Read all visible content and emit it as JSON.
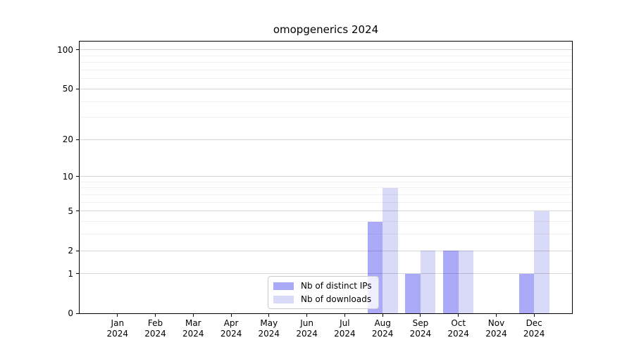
{
  "title": "omopgenerics 2024",
  "chart_data": {
    "type": "bar",
    "title": "omopgenerics 2024",
    "categories": [
      "Jan 2024",
      "Feb 2024",
      "Mar 2024",
      "Apr 2024",
      "May 2024",
      "Jun 2024",
      "Jul 2024",
      "Aug 2024",
      "Sep 2024",
      "Oct 2024",
      "Nov 2024",
      "Dec 2024"
    ],
    "series": [
      {
        "name": "Nb of distinct IPs",
        "color": "#aaaaf8",
        "values": [
          0,
          0,
          0,
          0,
          0,
          0,
          0,
          4,
          1,
          2,
          0,
          1
        ]
      },
      {
        "name": "Nb of downloads",
        "color": "#d9d9f8",
        "values": [
          0,
          0,
          0,
          0,
          0,
          0,
          0,
          8,
          2,
          2,
          0,
          5
        ]
      }
    ],
    "xlabel": "",
    "ylabel": "",
    "yscale": "log1p",
    "ylim": [
      0,
      116
    ],
    "y_major_ticks": [
      0,
      1,
      2,
      5,
      10,
      20,
      50,
      100
    ],
    "y_minor_gridlines": [
      3,
      4,
      6,
      7,
      8,
      9,
      30,
      40,
      60,
      70,
      80,
      90
    ],
    "grid": "horizontal major and minor gridlines drawn above bars",
    "legend_position": "lower center inside plot",
    "bar_width_fraction": 0.4
  },
  "colors": {
    "bar_distinct_ips": "#aaaaf8",
    "bar_downloads": "#d9d9f8",
    "major_grid": "rgba(0, 0, 0, 0.16)",
    "minor_grid": "rgba(0, 0, 0, 0.055)",
    "spine": "#000000",
    "text": "#000000",
    "legend_background": "rgba(255, 255, 255, 0.8)",
    "legend_border": "#cccccc",
    "figure_background": "#ffffff"
  }
}
